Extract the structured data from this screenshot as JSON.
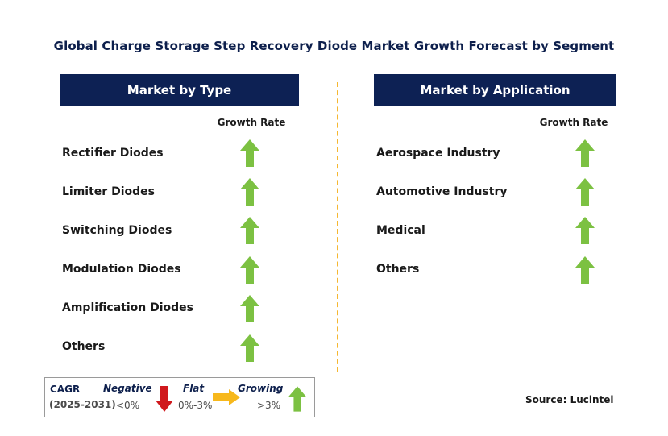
{
  "title": "Global Charge Storage Step  Recovery Diode Market Growth Forecast by Segment",
  "left_panel": {
    "header": "Market by Type",
    "growth_rate_label": "Growth Rate",
    "rows": [
      {
        "label": "Rectifier Diodes",
        "trend": "growing"
      },
      {
        "label": "Limiter Diodes",
        "trend": "growing"
      },
      {
        "label": "Switching Diodes",
        "trend": "growing"
      },
      {
        "label": "Modulation Diodes",
        "trend": "growing"
      },
      {
        "label": "Amplification Diodes",
        "trend": "growing"
      },
      {
        "label": "Others",
        "trend": "growing"
      }
    ]
  },
  "right_panel": {
    "header": "Market by Application",
    "growth_rate_label": "Growth Rate",
    "rows": [
      {
        "label": "Aerospace Industry",
        "trend": "growing"
      },
      {
        "label": "Automotive Industry",
        "trend": "growing"
      },
      {
        "label": "Medical",
        "trend": "growing"
      },
      {
        "label": "Others",
        "trend": "growing"
      }
    ]
  },
  "legend": {
    "cagr_label": "CAGR",
    "period": "(2025-2031)",
    "negative": {
      "label": "Negative",
      "range": "<0%"
    },
    "flat": {
      "label": "Flat",
      "range": "0%-3%"
    },
    "growing": {
      "label": "Growing",
      "range": ">3%"
    }
  },
  "source": "Source: Lucintel",
  "colors": {
    "header_bg": "#0d2154",
    "growing_arrow": "#7cc142",
    "negative_arrow": "#d0191d",
    "flat_arrow": "#f7b81c",
    "divider": "#f5b731"
  }
}
